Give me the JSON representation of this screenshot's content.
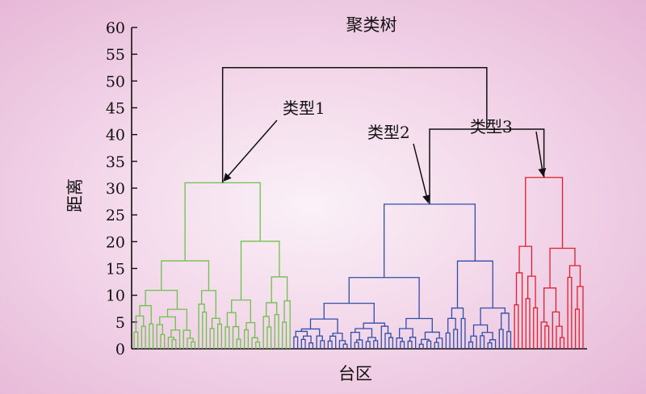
{
  "chart_data": {
    "type": "dendrogram",
    "title": "聚类树",
    "xlabel": "台区",
    "ylabel": "距离",
    "ylim": [
      0,
      60
    ],
    "yticks": [
      0,
      5,
      10,
      15,
      20,
      25,
      30,
      35,
      40,
      45,
      50,
      55,
      60
    ],
    "clusters": [
      {
        "name": "类型1",
        "color": "#6cc24a",
        "leaf_count": 42,
        "merge_height": 31
      },
      {
        "name": "类型2",
        "color": "#2f4fa8",
        "leaf_count": 58,
        "merge_height": 27
      },
      {
        "name": "类型3",
        "color": "#e0202a",
        "leaf_count": 19,
        "merge_height": 32
      }
    ],
    "top_merges": [
      {
        "left": "类型2",
        "right": "类型3",
        "height": 41
      },
      {
        "left": "类型1",
        "right": "类型2+类型3",
        "height": 52.5
      }
    ],
    "link_color": "#111111"
  }
}
